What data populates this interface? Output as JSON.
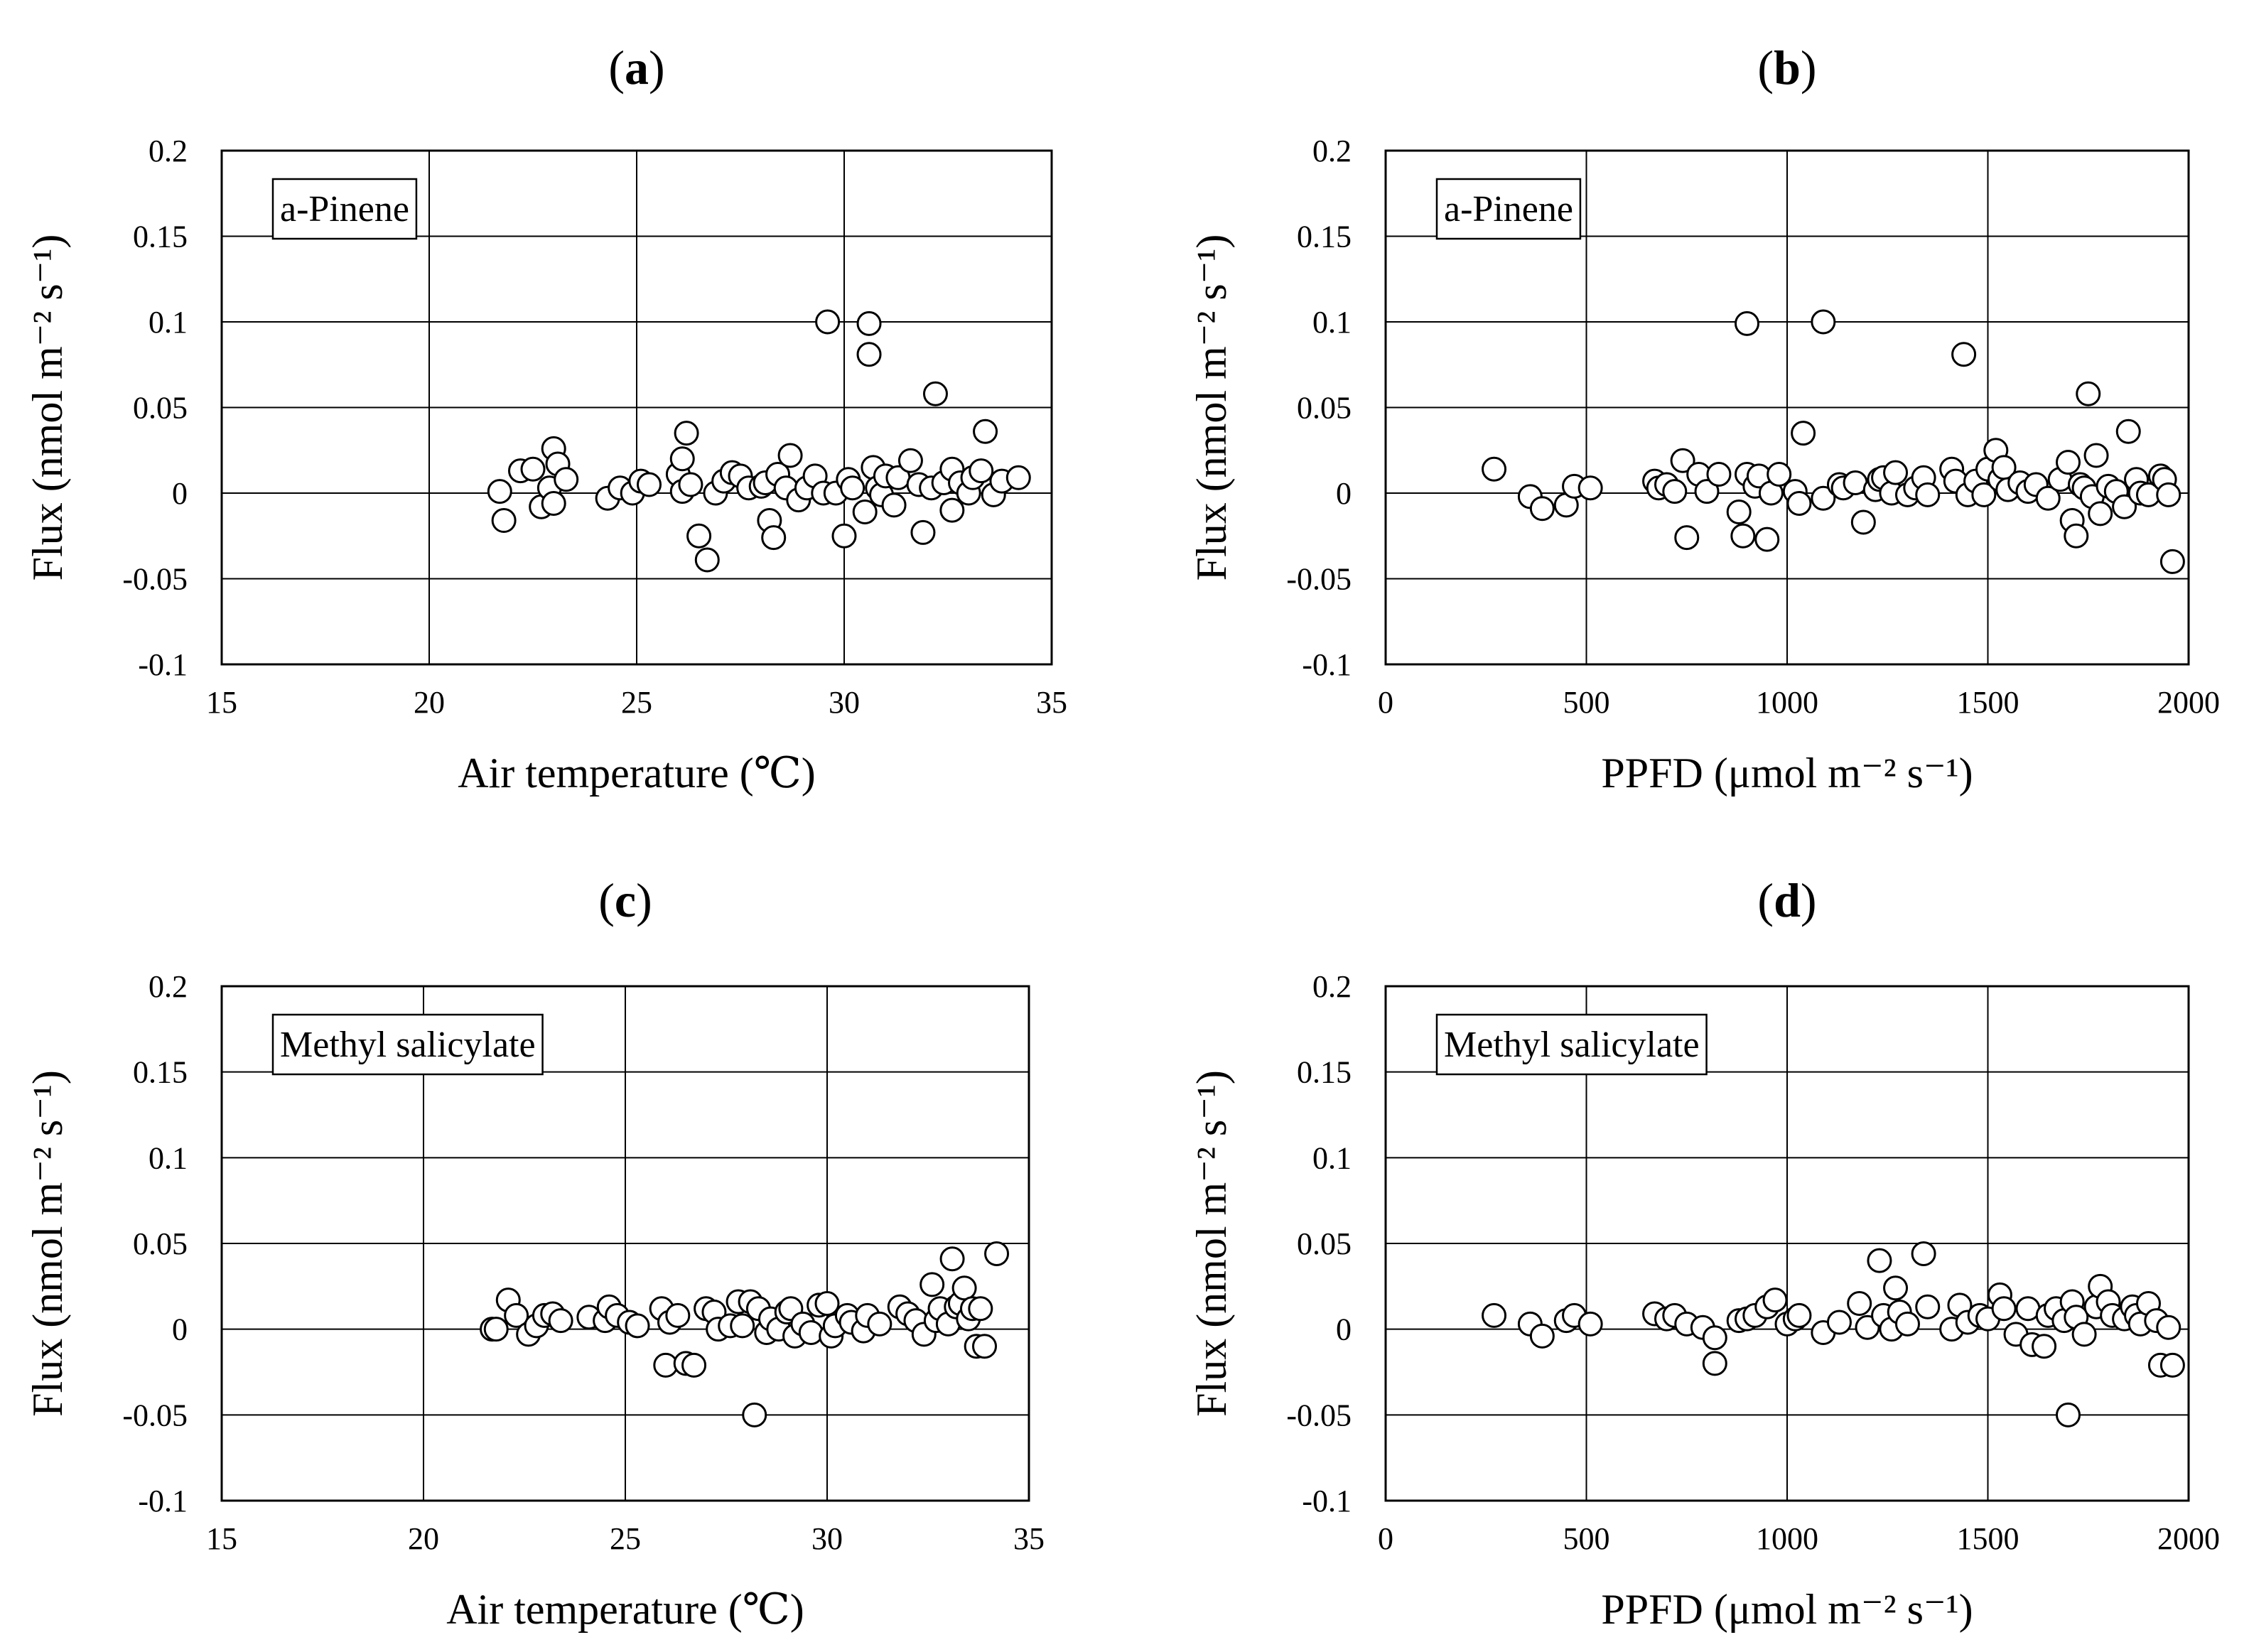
{
  "chart_data": [
    {
      "id": "a",
      "panel_label": "a",
      "type": "scatter",
      "series_name": "a-Pinene",
      "xlabel": "Air temperature (℃)",
      "ylabel": "Flux (nmol m⁻² s⁻¹)",
      "xlim": [
        15,
        35
      ],
      "ylim": [
        -0.1,
        0.2
      ],
      "xticks": [
        15,
        20,
        25,
        30,
        35
      ],
      "xtick_labels": [
        "15",
        "20",
        "25",
        "30",
        "35"
      ],
      "yticks": [
        -0.1,
        -0.05,
        0,
        0.05,
        0.1,
        0.15,
        0.2
      ],
      "ytick_labels": [
        "-0.1",
        "-0.05",
        "0",
        "0.05",
        "0.1",
        "0.15",
        "0.2"
      ],
      "grid": true,
      "legend_position": "top-left",
      "points": [
        [
          21.7,
          0.001
        ],
        [
          21.8,
          -0.016
        ],
        [
          22.2,
          0.013
        ],
        [
          22.5,
          0.014
        ],
        [
          22.7,
          -0.008
        ],
        [
          22.9,
          0.003
        ],
        [
          23.0,
          0.026
        ],
        [
          23.0,
          -0.006
        ],
        [
          23.1,
          0.017
        ],
        [
          23.3,
          0.008
        ],
        [
          24.3,
          -0.003
        ],
        [
          24.6,
          0.003
        ],
        [
          24.9,
          0.0
        ],
        [
          25.1,
          0.007
        ],
        [
          25.3,
          0.005
        ],
        [
          26.0,
          0.011
        ],
        [
          26.1,
          0.001
        ],
        [
          26.1,
          0.02
        ],
        [
          26.2,
          0.035
        ],
        [
          26.3,
          0.005
        ],
        [
          26.5,
          -0.025
        ],
        [
          26.7,
          -0.039
        ],
        [
          26.9,
          0.0
        ],
        [
          27.1,
          0.007
        ],
        [
          27.3,
          0.012
        ],
        [
          27.5,
          0.01
        ],
        [
          27.7,
          0.003
        ],
        [
          28.0,
          0.004
        ],
        [
          28.1,
          0.006
        ],
        [
          28.2,
          -0.016
        ],
        [
          28.3,
          -0.026
        ],
        [
          28.4,
          0.011
        ],
        [
          28.6,
          0.003
        ],
        [
          28.7,
          0.022
        ],
        [
          28.9,
          -0.004
        ],
        [
          29.1,
          0.003
        ],
        [
          29.3,
          0.01
        ],
        [
          29.5,
          0.0
        ],
        [
          29.6,
          0.1
        ],
        [
          29.8,
          0.0
        ],
        [
          30.0,
          -0.025
        ],
        [
          30.1,
          0.008
        ],
        [
          30.2,
          0.003
        ],
        [
          30.5,
          -0.011
        ],
        [
          30.6,
          0.099
        ],
        [
          30.6,
          0.081
        ],
        [
          30.7,
          0.015
        ],
        [
          30.8,
          0.003
        ],
        [
          30.9,
          -0.001
        ],
        [
          31.0,
          0.01
        ],
        [
          31.2,
          -0.007
        ],
        [
          31.3,
          0.009
        ],
        [
          31.6,
          0.019
        ],
        [
          31.8,
          0.005
        ],
        [
          31.9,
          -0.023
        ],
        [
          32.1,
          0.003
        ],
        [
          32.2,
          0.058
        ],
        [
          32.4,
          0.006
        ],
        [
          32.6,
          -0.01
        ],
        [
          32.6,
          0.014
        ],
        [
          32.8,
          0.006
        ],
        [
          33.0,
          0.0
        ],
        [
          33.1,
          0.009
        ],
        [
          33.3,
          0.013
        ],
        [
          33.4,
          0.036
        ],
        [
          33.6,
          -0.001
        ],
        [
          33.8,
          0.007
        ],
        [
          34.2,
          0.009
        ]
      ]
    },
    {
      "id": "b",
      "panel_label": "b",
      "type": "scatter",
      "series_name": "a-Pinene",
      "xlabel": "PPFD (μmol m⁻² s⁻¹)",
      "ylabel": "Flux (nmol m⁻² s⁻¹)",
      "xlim": [
        0,
        2000
      ],
      "ylim": [
        -0.1,
        0.2
      ],
      "xticks": [
        0,
        500,
        1000,
        1500,
        2000
      ],
      "xtick_labels": [
        "0",
        "500",
        "1000",
        "1500",
        "2000"
      ],
      "yticks": [
        -0.1,
        -0.05,
        0,
        0.05,
        0.1,
        0.15,
        0.2
      ],
      "ytick_labels": [
        "-0.1",
        "-0.05",
        "0",
        "0.05",
        "0.1",
        "0.15",
        "0.2"
      ],
      "grid": true,
      "legend_position": "top-left",
      "points": [
        [
          270,
          0.014
        ],
        [
          360,
          -0.002
        ],
        [
          390,
          -0.009
        ],
        [
          450,
          -0.007
        ],
        [
          470,
          0.004
        ],
        [
          510,
          0.003
        ],
        [
          670,
          0.007
        ],
        [
          680,
          0.003
        ],
        [
          700,
          0.005
        ],
        [
          720,
          0.001
        ],
        [
          740,
          0.019
        ],
        [
          750,
          -0.026
        ],
        [
          780,
          0.011
        ],
        [
          800,
          0.001
        ],
        [
          830,
          0.011
        ],
        [
          880,
          -0.011
        ],
        [
          890,
          -0.025
        ],
        [
          900,
          0.099
        ],
        [
          900,
          0.011
        ],
        [
          920,
          0.004
        ],
        [
          930,
          0.01
        ],
        [
          950,
          -0.027
        ],
        [
          960,
          0.0
        ],
        [
          980,
          0.011
        ],
        [
          1020,
          0.001
        ],
        [
          1030,
          -0.006
        ],
        [
          1040,
          0.035
        ],
        [
          1090,
          0.1
        ],
        [
          1090,
          -0.003
        ],
        [
          1130,
          0.005
        ],
        [
          1140,
          0.003
        ],
        [
          1170,
          0.006
        ],
        [
          1190,
          -0.017
        ],
        [
          1220,
          0.002
        ],
        [
          1230,
          0.008
        ],
        [
          1240,
          0.009
        ],
        [
          1260,
          0.0
        ],
        [
          1270,
          0.012
        ],
        [
          1300,
          -0.001
        ],
        [
          1320,
          0.003
        ],
        [
          1340,
          0.009
        ],
        [
          1350,
          -0.001
        ],
        [
          1410,
          0.014
        ],
        [
          1420,
          0.007
        ],
        [
          1440,
          0.081
        ],
        [
          1450,
          -0.001
        ],
        [
          1470,
          0.007
        ],
        [
          1490,
          -0.001
        ],
        [
          1500,
          0.014
        ],
        [
          1520,
          0.025
        ],
        [
          1530,
          0.008
        ],
        [
          1540,
          0.015
        ],
        [
          1550,
          0.002
        ],
        [
          1580,
          0.006
        ],
        [
          1600,
          0.001
        ],
        [
          1620,
          0.005
        ],
        [
          1650,
          -0.003
        ],
        [
          1680,
          0.008
        ],
        [
          1700,
          0.018
        ],
        [
          1710,
          -0.016
        ],
        [
          1720,
          -0.025
        ],
        [
          1730,
          0.005
        ],
        [
          1740,
          0.003
        ],
        [
          1750,
          0.058
        ],
        [
          1760,
          -0.002
        ],
        [
          1770,
          0.022
        ],
        [
          1780,
          -0.012
        ],
        [
          1800,
          0.004
        ],
        [
          1820,
          0.001
        ],
        [
          1840,
          -0.008
        ],
        [
          1850,
          0.036
        ],
        [
          1870,
          0.008
        ],
        [
          1880,
          0.0
        ],
        [
          1900,
          -0.001
        ],
        [
          1930,
          0.01
        ],
        [
          1940,
          0.008
        ],
        [
          1950,
          -0.001
        ],
        [
          1960,
          -0.04
        ]
      ]
    },
    {
      "id": "c",
      "panel_label": "c",
      "type": "scatter",
      "series_name": "Methyl salicylate",
      "xlabel": "Air temperature (℃)",
      "ylabel": "Flux (nmol m⁻² s⁻¹)",
      "xlim": [
        15,
        35
      ],
      "ylim": [
        -0.1,
        0.2
      ],
      "xticks": [
        15,
        20,
        25,
        30,
        35
      ],
      "xtick_labels": [
        "15",
        "20",
        "25",
        "30",
        "35"
      ],
      "yticks": [
        -0.1,
        -0.05,
        0,
        0.05,
        0.1,
        0.15,
        0.2
      ],
      "ytick_labels": [
        "-0.1",
        "-0.05",
        "0",
        "0.05",
        "0.1",
        "0.15",
        "0.2"
      ],
      "grid": true,
      "legend_position": "top-left",
      "points": [
        [
          21.7,
          0.0
        ],
        [
          21.8,
          0.0
        ],
        [
          22.1,
          0.017
        ],
        [
          22.3,
          0.008
        ],
        [
          22.6,
          -0.003
        ],
        [
          22.8,
          0.002
        ],
        [
          23.0,
          0.008
        ],
        [
          23.2,
          0.009
        ],
        [
          23.4,
          0.005
        ],
        [
          24.1,
          0.007
        ],
        [
          24.5,
          0.005
        ],
        [
          24.6,
          0.013
        ],
        [
          24.8,
          0.008
        ],
        [
          25.1,
          0.004
        ],
        [
          25.3,
          0.002
        ],
        [
          25.9,
          0.012
        ],
        [
          26.0,
          -0.021
        ],
        [
          26.1,
          0.004
        ],
        [
          26.3,
          0.008
        ],
        [
          26.5,
          -0.02
        ],
        [
          26.7,
          -0.021
        ],
        [
          27.0,
          0.012
        ],
        [
          27.2,
          0.01
        ],
        [
          27.3,
          0.0
        ],
        [
          27.6,
          0.002
        ],
        [
          27.8,
          0.016
        ],
        [
          27.9,
          0.002
        ],
        [
          28.1,
          0.016
        ],
        [
          28.2,
          -0.05
        ],
        [
          28.3,
          0.012
        ],
        [
          28.5,
          -0.002
        ],
        [
          28.6,
          0.006
        ],
        [
          28.8,
          0.0
        ],
        [
          29.0,
          0.01
        ],
        [
          29.1,
          0.012
        ],
        [
          29.2,
          -0.004
        ],
        [
          29.4,
          0.003
        ],
        [
          29.6,
          -0.002
        ],
        [
          29.8,
          0.014
        ],
        [
          30.0,
          0.015
        ],
        [
          30.1,
          -0.004
        ],
        [
          30.2,
          0.002
        ],
        [
          30.5,
          0.008
        ],
        [
          30.6,
          0.004
        ],
        [
          30.9,
          -0.001
        ],
        [
          31.0,
          0.008
        ],
        [
          31.3,
          0.003
        ],
        [
          31.8,
          0.013
        ],
        [
          32.0,
          0.009
        ],
        [
          32.2,
          0.005
        ],
        [
          32.4,
          -0.003
        ],
        [
          32.6,
          0.026
        ],
        [
          32.7,
          0.005
        ],
        [
          32.8,
          0.012
        ],
        [
          33.0,
          0.003
        ],
        [
          33.1,
          0.041
        ],
        [
          33.2,
          0.013
        ],
        [
          33.3,
          0.015
        ],
        [
          33.4,
          0.024
        ],
        [
          33.5,
          0.006
        ],
        [
          33.6,
          0.012
        ],
        [
          33.7,
          -0.01
        ],
        [
          33.8,
          0.012
        ],
        [
          33.9,
          -0.01
        ],
        [
          34.2,
          0.044
        ]
      ]
    },
    {
      "id": "d",
      "panel_label": "d",
      "type": "scatter",
      "series_name": "Methyl salicylate",
      "xlabel": "PPFD (μmol m⁻² s⁻¹)",
      "ylabel": "Flux (nmol m⁻² s⁻¹)",
      "xlim": [
        0,
        2000
      ],
      "ylim": [
        -0.1,
        0.2
      ],
      "xticks": [
        0,
        500,
        1000,
        1500,
        2000
      ],
      "xtick_labels": [
        "0",
        "500",
        "1000",
        "1500",
        "2000"
      ],
      "yticks": [
        -0.1,
        -0.05,
        0,
        0.05,
        0.1,
        0.15,
        0.2
      ],
      "ytick_labels": [
        "-0.1",
        "-0.05",
        "0",
        "0.05",
        "0.1",
        "0.15",
        "0.2"
      ],
      "grid": true,
      "legend_position": "top-left",
      "points": [
        [
          270,
          0.008
        ],
        [
          360,
          0.003
        ],
        [
          390,
          -0.004
        ],
        [
          450,
          0.005
        ],
        [
          470,
          0.008
        ],
        [
          510,
          0.003
        ],
        [
          670,
          0.009
        ],
        [
          700,
          0.006
        ],
        [
          720,
          0.008
        ],
        [
          750,
          0.003
        ],
        [
          790,
          0.001
        ],
        [
          820,
          -0.005
        ],
        [
          820,
          -0.02
        ],
        [
          880,
          0.005
        ],
        [
          900,
          0.006
        ],
        [
          920,
          0.008
        ],
        [
          950,
          0.013
        ],
        [
          970,
          0.017
        ],
        [
          1000,
          0.003
        ],
        [
          1020,
          0.006
        ],
        [
          1030,
          0.008
        ],
        [
          1090,
          -0.002
        ],
        [
          1130,
          0.004
        ],
        [
          1180,
          0.015
        ],
        [
          1200,
          0.001
        ],
        [
          1230,
          0.04
        ],
        [
          1240,
          0.008
        ],
        [
          1260,
          0.0
        ],
        [
          1270,
          0.024
        ],
        [
          1280,
          0.01
        ],
        [
          1300,
          0.003
        ],
        [
          1340,
          0.044
        ],
        [
          1350,
          0.013
        ],
        [
          1410,
          0.0
        ],
        [
          1430,
          0.014
        ],
        [
          1450,
          0.004
        ],
        [
          1480,
          0.008
        ],
        [
          1500,
          0.006
        ],
        [
          1530,
          0.02
        ],
        [
          1540,
          0.012
        ],
        [
          1570,
          -0.003
        ],
        [
          1600,
          0.012
        ],
        [
          1610,
          -0.009
        ],
        [
          1640,
          -0.01
        ],
        [
          1650,
          0.008
        ],
        [
          1670,
          0.012
        ],
        [
          1690,
          0.005
        ],
        [
          1700,
          -0.05
        ],
        [
          1710,
          0.016
        ],
        [
          1720,
          0.007
        ],
        [
          1740,
          -0.003
        ],
        [
          1770,
          0.013
        ],
        [
          1780,
          0.025
        ],
        [
          1800,
          0.016
        ],
        [
          1810,
          0.008
        ],
        [
          1840,
          0.006
        ],
        [
          1860,
          0.013
        ],
        [
          1870,
          0.008
        ],
        [
          1880,
          0.003
        ],
        [
          1900,
          0.015
        ],
        [
          1920,
          0.005
        ],
        [
          1930,
          -0.021
        ],
        [
          1950,
          0.001
        ],
        [
          1960,
          -0.021
        ]
      ]
    }
  ]
}
